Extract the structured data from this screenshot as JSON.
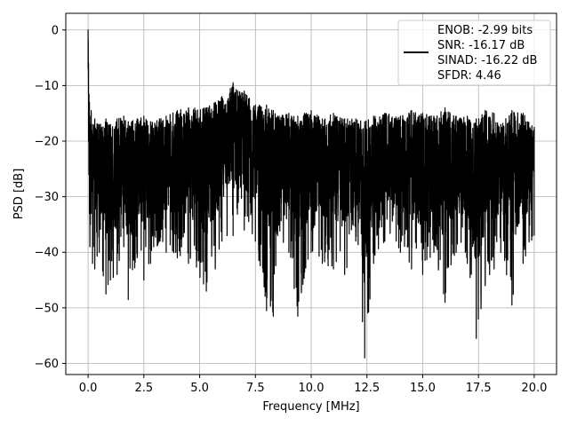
{
  "chart_data": {
    "type": "line",
    "title": "",
    "xlabel": "Frequency [MHz]",
    "ylabel": "PSD [dB]",
    "xlim": [
      -1.0,
      21.0
    ],
    "ylim": [
      -62.0,
      3.0
    ],
    "x_ticks": [
      0.0,
      2.5,
      5.0,
      7.5,
      10.0,
      12.5,
      15.0,
      17.5,
      20.0
    ],
    "x_tick_labels": [
      "0.0",
      "2.5",
      "5.0",
      "7.5",
      "10.0",
      "12.5",
      "15.0",
      "17.5",
      "20.0"
    ],
    "y_ticks": [
      0,
      -10,
      -20,
      -30,
      -40,
      -50,
      -60
    ],
    "y_tick_labels": [
      "0",
      "−10",
      "−20",
      "−30",
      "−40",
      "−50",
      "−60"
    ],
    "grid": true,
    "legend_position": "top-right",
    "series": [
      {
        "color": "#000000",
        "legend_lines": [
          "ENOB: -2.99 bits",
          "SNR: -16.17 dB",
          "SINAD: -16.22 dB",
          "SFDR: 4.46"
        ],
        "x": [
          0.0,
          0.02,
          0.04,
          0.06,
          0.08,
          0.1,
          0.14,
          0.2,
          0.3,
          0.5,
          0.8,
          1.0,
          1.3,
          1.6,
          1.8,
          2.2,
          2.5,
          2.8,
          3.2,
          3.5,
          4.0,
          4.5,
          5.3,
          5.7,
          6.0,
          6.5,
          7.0,
          7.5,
          8.0,
          8.3,
          8.5,
          9.0,
          9.4,
          10.0,
          10.5,
          11.0,
          11.5,
          12.0,
          12.4,
          12.8,
          13.3,
          14.0,
          14.5,
          15.0,
          15.5,
          16.0,
          16.5,
          17.0,
          17.4,
          17.8,
          18.2,
          18.5,
          19.0,
          19.5,
          20.0
        ],
        "upper": [
          0.0,
          -6.0,
          -11.5,
          -13.0,
          -15.5,
          -17.0,
          -14.5,
          -17.0,
          -16.0,
          -17.0,
          -16.0,
          -17.0,
          -16.0,
          -15.5,
          -16.5,
          -16.0,
          -15.5,
          -16.5,
          -16.0,
          -15.5,
          -14.5,
          -14.0,
          -14.0,
          -13.0,
          -12.0,
          -9.5,
          -11.0,
          -13.5,
          -13.5,
          -14.5,
          -15.5,
          -15.0,
          -15.5,
          -14.5,
          -16.0,
          -15.0,
          -16.0,
          -16.0,
          -16.5,
          -15.5,
          -15.0,
          -15.5,
          -14.5,
          -15.0,
          -15.5,
          -14.0,
          -15.5,
          -15.5,
          -16.0,
          -14.5,
          -15.0,
          -17.0,
          -14.5,
          -15.0,
          -17.5
        ],
        "lower": [
          -7.0,
          -20.0,
          -26.0,
          -33.0,
          -39.0,
          -35.0,
          -33.0,
          -42.0,
          -43.0,
          -40.0,
          -47.5,
          -45.0,
          -44.0,
          -39.0,
          -48.5,
          -41.0,
          -45.0,
          -42.0,
          -38.0,
          -40.0,
          -41.0,
          -42.0,
          -47.0,
          -43.0,
          -38.0,
          -37.0,
          -36.0,
          -38.0,
          -50.5,
          -51.5,
          -37.0,
          -40.0,
          -51.5,
          -40.0,
          -42.0,
          -43.0,
          -44.0,
          -38.0,
          -59.0,
          -42.0,
          -38.0,
          -40.0,
          -43.0,
          -44.0,
          -40.0,
          -49.0,
          -40.0,
          -42.0,
          -55.5,
          -46.0,
          -43.0,
          -40.0,
          -49.5,
          -42.0,
          -37.0
        ]
      }
    ]
  }
}
